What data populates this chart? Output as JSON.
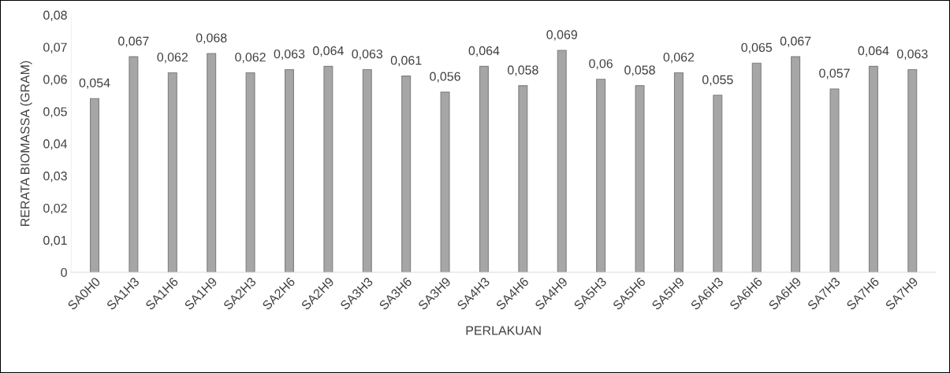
{
  "chart_data": {
    "type": "bar",
    "xlabel": "PERLAKUAN",
    "ylabel": "RERATA BIOMASSA (GRAM)",
    "categories": [
      "SA0H0",
      "SA1H3",
      "SA1H6",
      "SA1H9",
      "SA2H3",
      "SA2H6",
      "SA2H9",
      "SA3H3",
      "SA3H6",
      "SA3H9",
      "SA4H3",
      "SA4H6",
      "SA4H9",
      "SA5H3",
      "SA5H6",
      "SA5H9",
      "SA6H3",
      "SA6H6",
      "SA6H9",
      "SA7H3",
      "SA7H6",
      "SA7H9"
    ],
    "values": [
      0.054,
      0.067,
      0.062,
      0.068,
      0.062,
      0.063,
      0.064,
      0.063,
      0.061,
      0.056,
      0.064,
      0.058,
      0.069,
      0.06,
      0.058,
      0.062,
      0.055,
      0.065,
      0.067,
      0.057,
      0.064,
      0.063
    ],
    "value_labels": [
      "0,054",
      "0,067",
      "0,062",
      "0,068",
      "0,062",
      "0,063",
      "0,064",
      "0,063",
      "0,061",
      "0,056",
      "0,064",
      "0,058",
      "0,069",
      "0,06",
      "0,058",
      "0,062",
      "0,055",
      "0,065",
      "0,067",
      "0,057",
      "0,064",
      "0,063"
    ],
    "color": "#a6a6a6",
    "ylim": [
      0,
      0.08
    ],
    "yticks": [
      0,
      {
        "value": 0.01,
        "label": "0,01"
      },
      {
        "value": 0.02,
        "label": "0,02"
      },
      {
        "value": 0.03,
        "label": "0,03"
      },
      {
        "value": 0.04,
        "label": "0,04"
      },
      {
        "value": 0.05,
        "label": "0,05"
      },
      {
        "value": 0.06,
        "label": "0,06"
      },
      {
        "value": 0.07,
        "label": "0,07"
      },
      {
        "value": 0.08,
        "label": "0,08"
      }
    ]
  }
}
